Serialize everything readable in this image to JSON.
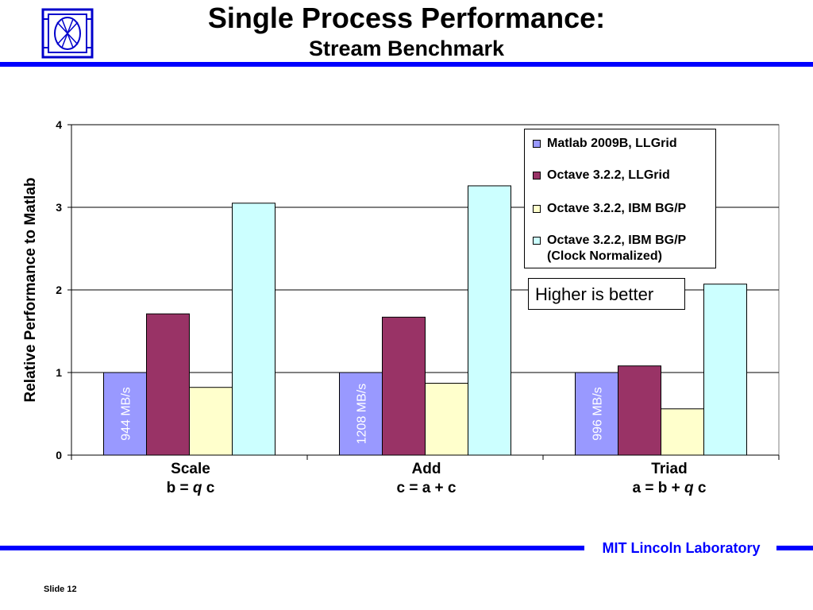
{
  "header": {
    "title": "Single Process Performance:",
    "subtitle": "Stream Benchmark"
  },
  "colors": {
    "accent": "#0000ff",
    "series": [
      "#9999ff",
      "#993366",
      "#ffffcc",
      "#ccffff"
    ]
  },
  "callout": "Higher is better",
  "footer": {
    "lab": "MIT Lincoln Laboratory",
    "slide": "Slide 12"
  },
  "chart_data": {
    "type": "bar",
    "ylabel": "Relative Performance to Matlab",
    "ylim": [
      0,
      4
    ],
    "yticks": [
      "0",
      "1",
      "2",
      "3",
      "4"
    ],
    "grid": true,
    "legend_position": "top-right",
    "categories": [
      {
        "name": "Scale",
        "formula_pre": "b = ",
        "formula_var": "q",
        "formula_post": " c"
      },
      {
        "name": "Add",
        "formula_pre": "c = a + c",
        "formula_var": "",
        "formula_post": ""
      },
      {
        "name": "Triad",
        "formula_pre": "a = b + ",
        "formula_var": "q",
        "formula_post": " c"
      }
    ],
    "series": [
      {
        "name": "Matlab 2009B, LLGrid",
        "values": [
          1.0,
          1.0,
          1.0
        ]
      },
      {
        "name": "Octave 3.2.2, LLGrid",
        "values": [
          1.71,
          1.67,
          1.08
        ]
      },
      {
        "name": "Octave 3.2.2, IBM BG/P",
        "values": [
          0.82,
          0.87,
          0.56
        ]
      },
      {
        "name": "Octave 3.2.2, IBM BG/P",
        "name_line2": "(Clock Normalized)",
        "values": [
          3.05,
          3.26,
          2.07
        ]
      }
    ],
    "bar_labels": [
      "944 MB/s",
      "1208 MB/s",
      "996 MB/s"
    ]
  }
}
